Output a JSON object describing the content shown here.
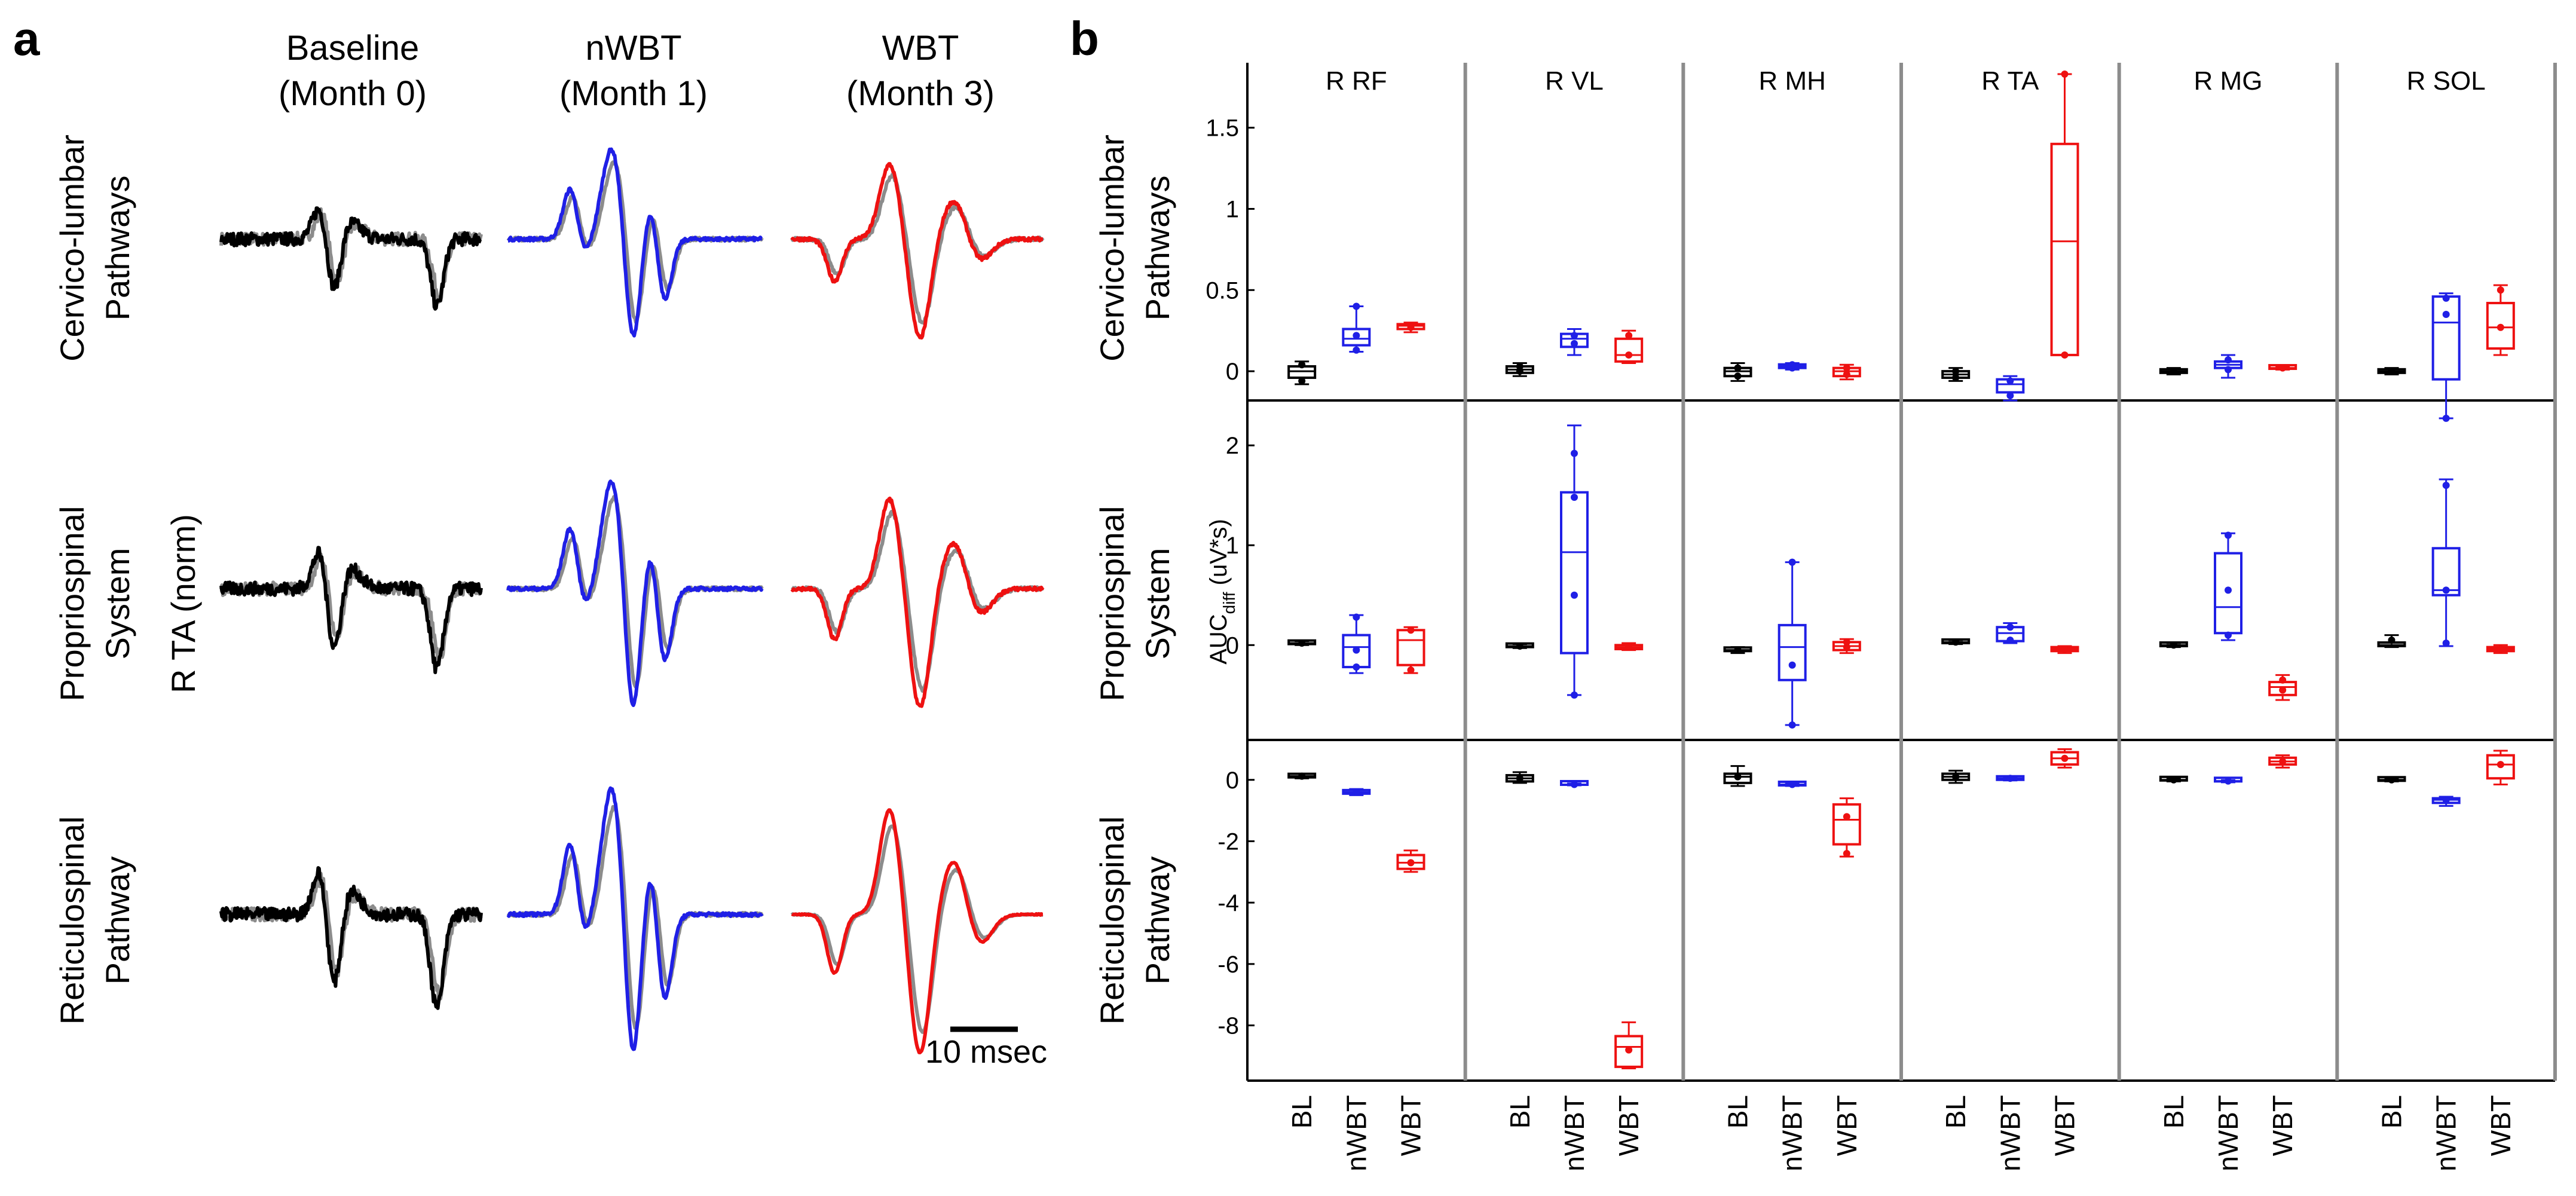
{
  "panel_a": {
    "label": "a",
    "columns": [
      {
        "line1": "Baseline",
        "line2": "(Month 0)",
        "color": "#000000"
      },
      {
        "line1": "nWBT",
        "line2": "(Month 1)",
        "color": "#1f1fe6"
      },
      {
        "line1": "WBT",
        "line2": "(Month 3)",
        "color": "#ee1111"
      }
    ],
    "rows": [
      {
        "line1": "Cervico-lumbar",
        "line2": "Pathways"
      },
      {
        "line1": "Propriospinal",
        "line2": "System"
      },
      {
        "line1": "Reticulospinal",
        "line2": "Pathway"
      }
    ],
    "ylabel": "R TA (norm)",
    "reference_color": "#8c8c8c",
    "scale_bar_label": "10 msec"
  },
  "panel_b": {
    "label": "b",
    "muscles": [
      "R RF",
      "R VL",
      "R MH",
      "R TA",
      "R MG",
      "R SOL"
    ],
    "rows": [
      {
        "line1": "Cervico-lumbar",
        "line2": "Pathways"
      },
      {
        "line1": "Propriospinal",
        "line2": "System"
      },
      {
        "line1": "Reticulospinal",
        "line2": "Pathway"
      }
    ],
    "ylabel_main": "AUC",
    "ylabel_sub": "diff",
    "ylabel_unit": " (uV*s)",
    "conditions": [
      "BL",
      "nWBT",
      "WBT"
    ],
    "condition_colors": [
      "#000000",
      "#1f1fe6",
      "#ee1111"
    ]
  },
  "chart_data": [
    {
      "type": "box",
      "title": "Cervico-lumbar Pathways",
      "ylabel": "AUCdiff (uV*s)",
      "ylim": [
        -0.18,
        1.9
      ],
      "yticks": [
        0,
        0.5,
        1,
        1.5
      ],
      "ytick_labels": [
        "0",
        "0.5",
        "1",
        "1.5"
      ],
      "groups": [
        "R RF",
        "R VL",
        "R MH",
        "R TA",
        "R MG",
        "R SOL"
      ],
      "categories": [
        "BL",
        "nWBT",
        "WBT"
      ],
      "boxes": [
        [
          [
            -0.08,
            -0.04,
            0.0,
            0.03,
            0.06
          ],
          [
            0.12,
            0.16,
            0.2,
            0.26,
            0.4
          ],
          [
            0.24,
            0.26,
            0.28,
            0.29,
            0.3
          ]
        ],
        [
          [
            -0.03,
            -0.01,
            0.01,
            0.03,
            0.05
          ],
          [
            0.1,
            0.15,
            0.2,
            0.23,
            0.26
          ],
          [
            0.05,
            0.06,
            0.1,
            0.2,
            0.25
          ]
        ],
        [
          [
            -0.06,
            -0.03,
            0.0,
            0.02,
            0.05
          ],
          [
            0.01,
            0.02,
            0.03,
            0.04,
            0.05
          ],
          [
            -0.05,
            -0.03,
            0.0,
            0.02,
            0.04
          ]
        ],
        [
          [
            -0.06,
            -0.04,
            -0.02,
            0.0,
            0.02
          ],
          [
            -0.18,
            -0.13,
            -0.08,
            -0.05,
            -0.03
          ],
          [
            0.1,
            0.1,
            0.8,
            1.4,
            1.83
          ]
        ],
        [
          [
            -0.02,
            -0.01,
            0.0,
            0.01,
            0.02
          ],
          [
            -0.04,
            0.02,
            0.04,
            0.06,
            0.1
          ],
          [
            0.01,
            0.015,
            0.02,
            0.025,
            0.03
          ]
        ],
        [
          [
            -0.02,
            -0.01,
            0.0,
            0.01,
            0.02
          ],
          [
            -0.29,
            -0.05,
            0.3,
            0.46,
            0.48
          ],
          [
            0.1,
            0.14,
            0.27,
            0.42,
            0.53
          ]
        ]
      ],
      "points": [
        [
          [
            -0.06,
            0.04
          ],
          [
            0.13,
            0.22,
            0.4
          ],
          [
            0.27
          ]
        ],
        [
          [
            0.0,
            0.03
          ],
          [
            0.17,
            0.22
          ],
          [
            0.1,
            0.22
          ]
        ],
        [
          [
            -0.03,
            0.02
          ],
          [
            0.02,
            0.04
          ],
          [
            -0.02,
            0.02
          ]
        ],
        [
          [
            -0.04,
            0.0
          ],
          [
            -0.15,
            -0.06
          ],
          [
            0.1,
            1.83
          ]
        ],
        [
          [
            0.0
          ],
          [
            0.01,
            0.07
          ],
          [
            0.02
          ]
        ],
        [
          [
            0.0
          ],
          [
            0.35,
            0.45,
            -0.29
          ],
          [
            0.27,
            0.5
          ]
        ]
      ]
    },
    {
      "type": "box",
      "title": "Propriospinal System",
      "ylabel": "AUCdiff (uV*s)",
      "ylim": [
        -0.95,
        2.45
      ],
      "yticks": [
        0,
        1,
        2
      ],
      "ytick_labels": [
        "0",
        "1",
        "2"
      ],
      "groups": [
        "R RF",
        "R VL",
        "R MH",
        "R TA",
        "R MG",
        "R SOL"
      ],
      "categories": [
        "BL",
        "nWBT",
        "WBT"
      ],
      "boxes": [
        [
          [
            0.0,
            0.01,
            0.02,
            0.03,
            0.04
          ],
          [
            -0.28,
            -0.22,
            -0.02,
            0.1,
            0.3
          ],
          [
            -0.28,
            -0.2,
            0.05,
            0.15,
            0.18
          ]
        ],
        [
          [
            -0.03,
            -0.02,
            -0.01,
            0.0,
            0.01
          ],
          [
            -0.5,
            -0.08,
            0.93,
            1.53,
            2.2
          ],
          [
            -0.05,
            -0.04,
            -0.02,
            0.0,
            0.02
          ]
        ],
        [
          [
            -0.08,
            -0.06,
            -0.05,
            -0.03,
            -0.02
          ],
          [
            -0.8,
            -0.35,
            -0.02,
            0.2,
            0.83
          ],
          [
            -0.08,
            -0.05,
            -0.01,
            0.03,
            0.06
          ]
        ],
        [
          [
            0.01,
            0.02,
            0.03,
            0.04,
            0.05
          ],
          [
            0.02,
            0.04,
            0.12,
            0.18,
            0.22
          ],
          [
            -0.08,
            -0.06,
            -0.04,
            -0.02,
            -0.01
          ]
        ],
        [
          [
            -0.02,
            -0.01,
            0.0,
            0.01,
            0.02
          ],
          [
            0.05,
            0.12,
            0.38,
            0.92,
            1.12
          ],
          [
            -0.55,
            -0.5,
            -0.42,
            -0.37,
            -0.3
          ]
        ],
        [
          [
            -0.02,
            -0.01,
            0.0,
            0.01,
            0.1
          ],
          [
            -0.01,
            0.5,
            0.55,
            0.97,
            1.66
          ],
          [
            -0.08,
            -0.06,
            -0.04,
            -0.02,
            0.0
          ]
        ]
      ],
      "points": [
        [
          [
            0.02
          ],
          [
            -0.05,
            0.28,
            -0.22
          ],
          [
            0.15,
            -0.25
          ]
        ],
        [
          [
            -0.01
          ],
          [
            1.48,
            0.5,
            1.92,
            -0.5
          ],
          [
            -0.02
          ]
        ],
        [
          [
            -0.05
          ],
          [
            0.83,
            -0.2,
            -0.8
          ],
          [
            -0.02,
            0.03
          ]
        ],
        [
          [
            0.03
          ],
          [
            0.18,
            0.05
          ],
          [
            -0.04
          ]
        ],
        [
          [
            0.0
          ],
          [
            0.55,
            1.1,
            0.1
          ],
          [
            -0.45,
            -0.35
          ]
        ],
        [
          [
            0.05
          ],
          [
            0.55,
            1.6,
            0.02
          ],
          [
            -0.04
          ]
        ]
      ]
    },
    {
      "type": "box",
      "title": "Reticulospinal Pathway",
      "ylabel": "AUCdiff (uV*s)",
      "ylim": [
        -9.8,
        1.3
      ],
      "yticks": [
        0,
        -2,
        -4,
        -6,
        -8
      ],
      "ytick_labels": [
        "0",
        "-2",
        "-4",
        "-6",
        "-8"
      ],
      "groups": [
        "R RF",
        "R VL",
        "R MH",
        "R TA",
        "R MG",
        "R SOL"
      ],
      "categories": [
        "BL",
        "nWBT",
        "WBT"
      ],
      "boxes": [
        [
          [
            0.05,
            0.08,
            0.12,
            0.16,
            0.2
          ],
          [
            -0.5,
            -0.45,
            -0.4,
            -0.35,
            -0.3
          ],
          [
            -3.0,
            -2.9,
            -2.7,
            -2.45,
            -2.3
          ]
        ],
        [
          [
            -0.1,
            -0.05,
            0.05,
            0.15,
            0.25
          ],
          [
            -0.18,
            -0.16,
            -0.15,
            -0.14,
            -0.12
          ],
          [
            -9.4,
            -9.35,
            -8.7,
            -8.35,
            -7.9
          ]
        ],
        [
          [
            -0.2,
            -0.1,
            0.1,
            0.2,
            0.45
          ],
          [
            -0.2,
            -0.18,
            -0.15,
            -0.13,
            -0.11
          ],
          [
            -2.5,
            -2.1,
            -1.3,
            -0.8,
            -0.6
          ]
        ],
        [
          [
            -0.1,
            0.0,
            0.1,
            0.2,
            0.3
          ],
          [
            -0.02,
            0.0,
            0.05,
            0.08,
            0.1
          ],
          [
            0.4,
            0.5,
            0.7,
            0.9,
            1.0
          ]
        ],
        [
          [
            -0.05,
            -0.02,
            0.0,
            0.02,
            0.05
          ],
          [
            -0.08,
            -0.05,
            -0.04,
            -0.03,
            -0.01
          ],
          [
            0.4,
            0.5,
            0.6,
            0.72,
            0.8
          ]
        ],
        [
          [
            -0.05,
            -0.03,
            0.0,
            0.02,
            0.05
          ],
          [
            -0.85,
            -0.75,
            -0.65,
            -0.6,
            -0.55
          ],
          [
            -0.15,
            0.05,
            0.5,
            0.8,
            0.95
          ]
        ]
      ],
      "points": [
        [
          [
            0.12
          ],
          [
            -0.4
          ],
          [
            -2.7
          ]
        ],
        [
          [
            0.05
          ],
          [
            -0.15
          ],
          [
            -8.8
          ]
        ],
        [
          [
            0.1
          ],
          [
            -0.15
          ],
          [
            -1.2,
            -2.4
          ]
        ],
        [
          [
            0.1
          ],
          [
            0.05
          ],
          [
            0.7
          ]
        ],
        [
          [
            0.0
          ],
          [
            -0.04
          ],
          [
            0.6
          ]
        ],
        [
          [
            0.0
          ],
          [
            -0.65
          ],
          [
            0.5
          ]
        ]
      ]
    }
  ]
}
